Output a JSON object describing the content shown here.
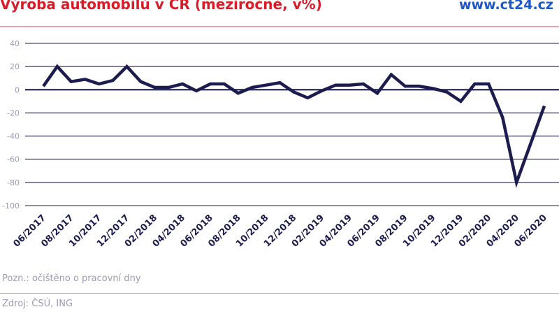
{
  "header": {
    "title": "Výroba automobilů v ČR (meziročně, v%)",
    "brand": "www.ct24.cz"
  },
  "footer": {
    "note": "Pozn.: očištěno o pracovní dny",
    "source": "Zdroj: ČSÚ, ING"
  },
  "colors": {
    "title": "#d61e2b",
    "brand": "#1e57c6",
    "line": "#1c1c4e",
    "grid": "#6a6a86",
    "zero_line": "#2a2a5a",
    "tick_label": "#9a9ab4",
    "x_label": "#1c1c4e"
  },
  "chart_data": {
    "type": "line",
    "title": "Výroba automobilů v ČR (meziročně, v%)",
    "xlabel": "",
    "ylabel": "",
    "ylim": [
      -100,
      40
    ],
    "yticks": [
      40,
      20,
      0,
      -20,
      -40,
      -60,
      -80,
      -100
    ],
    "grid": true,
    "legend": null,
    "x_tick_labels": [
      "06/2017",
      "08/2017",
      "10/2017",
      "12/2017",
      "02/2018",
      "04/2018",
      "06/2018",
      "08/2018",
      "10/2018",
      "12/2018",
      "02/2019",
      "04/2019",
      "06/2019",
      "08/2019",
      "10/2019",
      "12/2019",
      "02/2020",
      "04/2020",
      "06/2020"
    ],
    "x": [
      "06/2017",
      "07/2017",
      "08/2017",
      "09/2017",
      "10/2017",
      "11/2017",
      "12/2017",
      "01/2018",
      "02/2018",
      "03/2018",
      "04/2018",
      "05/2018",
      "06/2018",
      "07/2018",
      "08/2018",
      "09/2018",
      "10/2018",
      "11/2018",
      "12/2018",
      "01/2019",
      "02/2019",
      "03/2019",
      "04/2019",
      "05/2019",
      "06/2019",
      "07/2019",
      "08/2019",
      "09/2019",
      "10/2019",
      "11/2019",
      "12/2019",
      "01/2020",
      "02/2020",
      "03/2020",
      "04/2020",
      "05/2020",
      "06/2020"
    ],
    "series": [
      {
        "name": "Výroba automobilů (meziročně, v%)",
        "values": [
          3,
          20,
          7,
          9,
          5,
          8,
          20,
          7,
          2,
          2,
          5,
          -1,
          5,
          5,
          -3,
          2,
          4,
          6,
          -2,
          -7,
          -1,
          4,
          4,
          5,
          -3,
          13,
          3,
          3,
          1,
          -2,
          -10,
          5,
          5,
          -24,
          -80,
          -47,
          -14
        ]
      }
    ],
    "annotations": [
      "Pozn.: očištěno o pracovní dny",
      "Zdroj: ČSÚ, ING"
    ]
  }
}
